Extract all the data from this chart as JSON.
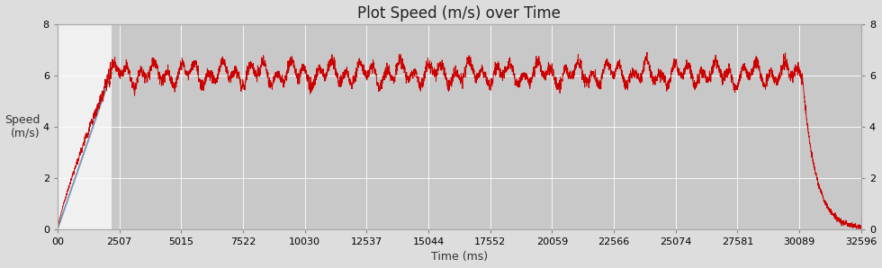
{
  "title": "Plot Speed (m/s) over Time",
  "xlabel": "Time (ms)",
  "ylabel": "Speed\n(m/s)",
  "xlim": [
    0,
    32596
  ],
  "ylim": [
    0,
    8
  ],
  "yticks": [
    0,
    2,
    4,
    6,
    8
  ],
  "xtick_labels": [
    "00",
    "2507",
    "5015",
    "7522",
    "10030",
    "12537",
    "15044",
    "17552",
    "20059",
    "22566",
    "25074",
    "27581",
    "30089",
    "32596"
  ],
  "xtick_values": [
    0,
    2507,
    5015,
    7522,
    10030,
    12537,
    15044,
    17552,
    20059,
    22566,
    25074,
    27581,
    30089,
    32596
  ],
  "bg_color_plot": "#c8c8c8",
  "bg_color_accel": "#f0f0f0",
  "accel_end": 2200,
  "decel_start": 30200,
  "total_end": 32596,
  "red_color": "#cc0000",
  "blue_color": "#7799bb",
  "grid_color": "#ffffff",
  "title_fontsize": 12,
  "label_fontsize": 9,
  "tick_fontsize": 8
}
